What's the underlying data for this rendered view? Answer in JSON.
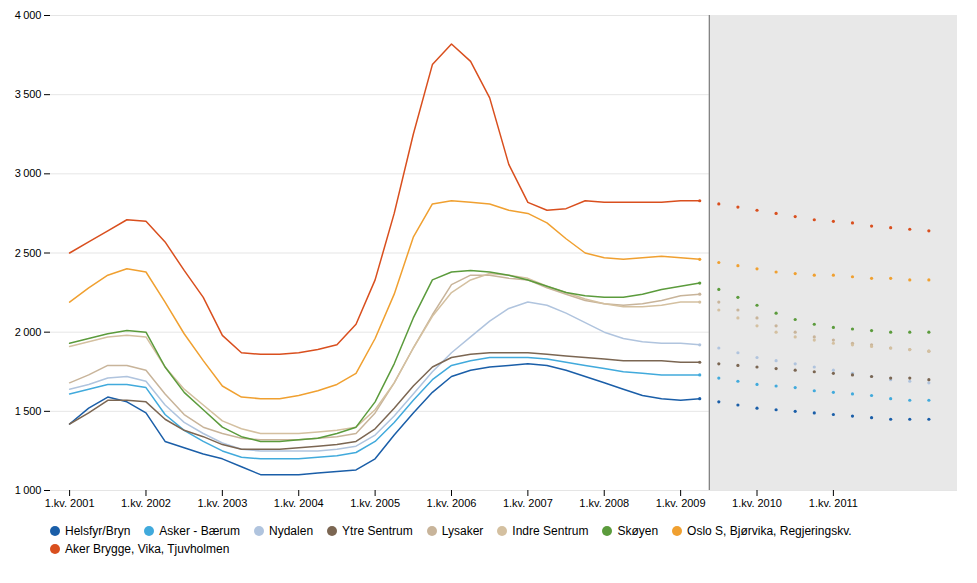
{
  "chart_data": {
    "type": "line",
    "categories": [
      "1.kv. 2001",
      null,
      null,
      null,
      "1.kv. 2002",
      null,
      null,
      null,
      "1.kv. 2003",
      null,
      null,
      null,
      "1.kv. 2004",
      null,
      null,
      null,
      "1.kv. 2005",
      null,
      null,
      null,
      "1.kv. 2006",
      null,
      null,
      null,
      "1.kv. 2007",
      null,
      null,
      null,
      "1.kv. 2008",
      null,
      null,
      null,
      "1.kv. 2009",
      null,
      null,
      null,
      "1.kv. 2010",
      null,
      null,
      null,
      "1.kv. 2011",
      null,
      null,
      null,
      null,
      null
    ],
    "series": [
      {
        "name": "Helsfyr/Bryn",
        "color": "#1a5ea8",
        "values": [
          1420,
          1520,
          1590,
          1560,
          1490,
          1310,
          1270,
          1230,
          1200,
          1150,
          1100,
          1100,
          1100,
          1110,
          1120,
          1130,
          1200,
          1350,
          1490,
          1620,
          1720,
          1760,
          1780,
          1790,
          1800,
          1790,
          1760,
          1720,
          1680,
          1640,
          1600,
          1580,
          1570,
          1580,
          null,
          null,
          null,
          null,
          null,
          null,
          null,
          null,
          null,
          null,
          null,
          null
        ],
        "forecast": [
          null,
          null,
          null,
          null,
          null,
          null,
          null,
          null,
          null,
          null,
          null,
          null,
          null,
          null,
          null,
          null,
          null,
          null,
          null,
          null,
          null,
          null,
          null,
          null,
          null,
          null,
          null,
          null,
          null,
          null,
          null,
          null,
          null,
          1580,
          1560,
          1540,
          1520,
          1510,
          1500,
          1490,
          1480,
          1470,
          1460,
          1450,
          1450,
          1450
        ]
      },
      {
        "name": "Asker - Bærum",
        "color": "#41aadc",
        "values": [
          1610,
          1640,
          1670,
          1670,
          1650,
          1480,
          1380,
          1310,
          1250,
          1210,
          1200,
          1200,
          1200,
          1210,
          1220,
          1240,
          1310,
          1430,
          1570,
          1700,
          1790,
          1820,
          1840,
          1840,
          1840,
          1830,
          1810,
          1790,
          1770,
          1750,
          1740,
          1730,
          1730,
          1730,
          null,
          null,
          null,
          null,
          null,
          null,
          null,
          null,
          null,
          null,
          null,
          null
        ],
        "forecast": [
          null,
          null,
          null,
          null,
          null,
          null,
          null,
          null,
          null,
          null,
          null,
          null,
          null,
          null,
          null,
          null,
          null,
          null,
          null,
          null,
          null,
          null,
          null,
          null,
          null,
          null,
          null,
          null,
          null,
          null,
          null,
          null,
          null,
          1730,
          1710,
          1690,
          1670,
          1660,
          1650,
          1630,
          1620,
          1610,
          1600,
          1580,
          1570,
          1570
        ]
      },
      {
        "name": "Nydalen",
        "color": "#b0c4de",
        "values": [
          1640,
          1670,
          1710,
          1720,
          1690,
          1540,
          1430,
          1360,
          1300,
          1260,
          1250,
          1250,
          1250,
          1250,
          1260,
          1280,
          1350,
          1470,
          1610,
          1750,
          1870,
          1970,
          2070,
          2150,
          2190,
          2170,
          2120,
          2060,
          2000,
          1960,
          1940,
          1930,
          1930,
          1920,
          null,
          null,
          null,
          null,
          null,
          null,
          null,
          null,
          null,
          null,
          null,
          null
        ],
        "forecast": [
          null,
          null,
          null,
          null,
          null,
          null,
          null,
          null,
          null,
          null,
          null,
          null,
          null,
          null,
          null,
          null,
          null,
          null,
          null,
          null,
          null,
          null,
          null,
          null,
          null,
          null,
          null,
          null,
          null,
          null,
          null,
          null,
          null,
          1920,
          1900,
          1870,
          1840,
          1820,
          1800,
          1780,
          1760,
          1740,
          1720,
          1700,
          1690,
          1680
        ]
      },
      {
        "name": "Ytre Sentrum",
        "color": "#7b6652",
        "values": [
          1420,
          1490,
          1570,
          1570,
          1560,
          1450,
          1380,
          1340,
          1290,
          1260,
          1260,
          1260,
          1270,
          1280,
          1290,
          1310,
          1390,
          1520,
          1660,
          1780,
          1840,
          1860,
          1870,
          1870,
          1870,
          1860,
          1850,
          1840,
          1830,
          1820,
          1820,
          1820,
          1810,
          1810,
          null,
          null,
          null,
          null,
          null,
          null,
          null,
          null,
          null,
          null,
          null,
          null
        ],
        "forecast": [
          null,
          null,
          null,
          null,
          null,
          null,
          null,
          null,
          null,
          null,
          null,
          null,
          null,
          null,
          null,
          null,
          null,
          null,
          null,
          null,
          null,
          null,
          null,
          null,
          null,
          null,
          null,
          null,
          null,
          null,
          null,
          null,
          null,
          1810,
          1800,
          1790,
          1780,
          1770,
          1760,
          1750,
          1740,
          1730,
          1720,
          1710,
          1710,
          1700
        ]
      },
      {
        "name": "Lysaker",
        "color": "#c8b49a",
        "values": [
          1680,
          1730,
          1790,
          1790,
          1760,
          1610,
          1480,
          1400,
          1360,
          1330,
          1320,
          1320,
          1320,
          1330,
          1340,
          1360,
          1490,
          1680,
          1900,
          2110,
          2300,
          2360,
          2360,
          2340,
          2330,
          2280,
          2240,
          2200,
          2180,
          2170,
          2180,
          2200,
          2230,
          2240,
          null,
          null,
          null,
          null,
          null,
          null,
          null,
          null,
          null,
          null,
          null,
          null
        ],
        "forecast": [
          null,
          null,
          null,
          null,
          null,
          null,
          null,
          null,
          null,
          null,
          null,
          null,
          null,
          null,
          null,
          null,
          null,
          null,
          null,
          null,
          null,
          null,
          null,
          null,
          null,
          null,
          null,
          null,
          null,
          null,
          null,
          null,
          null,
          2240,
          2190,
          2140,
          2090,
          2040,
          2000,
          1970,
          1950,
          1930,
          1920,
          1900,
          1890,
          1880
        ]
      },
      {
        "name": "Indre Sentrum",
        "color": "#d4c0a0",
        "values": [
          1910,
          1940,
          1970,
          1980,
          1970,
          1780,
          1640,
          1540,
          1440,
          1390,
          1360,
          1360,
          1360,
          1370,
          1380,
          1400,
          1510,
          1680,
          1900,
          2100,
          2250,
          2330,
          2370,
          2360,
          2340,
          2290,
          2250,
          2210,
          2180,
          2160,
          2160,
          2170,
          2190,
          2190,
          null,
          null,
          null,
          null,
          null,
          null,
          null,
          null,
          null,
          null,
          null,
          null
        ],
        "forecast": [
          null,
          null,
          null,
          null,
          null,
          null,
          null,
          null,
          null,
          null,
          null,
          null,
          null,
          null,
          null,
          null,
          null,
          null,
          null,
          null,
          null,
          null,
          null,
          null,
          null,
          null,
          null,
          null,
          null,
          null,
          null,
          null,
          null,
          2190,
          2140,
          2090,
          2040,
          2000,
          1970,
          1950,
          1930,
          1920,
          1910,
          1900,
          1890,
          1880
        ]
      },
      {
        "name": "Skøyen",
        "color": "#5b9b3c",
        "values": [
          1930,
          1960,
          1990,
          2010,
          2000,
          1780,
          1620,
          1510,
          1400,
          1340,
          1310,
          1310,
          1320,
          1330,
          1360,
          1400,
          1560,
          1800,
          2090,
          2330,
          2380,
          2390,
          2380,
          2360,
          2330,
          2290,
          2250,
          2230,
          2220,
          2220,
          2240,
          2270,
          2290,
          2310,
          null,
          null,
          null,
          null,
          null,
          null,
          null,
          null,
          null,
          null,
          null,
          null
        ],
        "forecast": [
          null,
          null,
          null,
          null,
          null,
          null,
          null,
          null,
          null,
          null,
          null,
          null,
          null,
          null,
          null,
          null,
          null,
          null,
          null,
          null,
          null,
          null,
          null,
          null,
          null,
          null,
          null,
          null,
          null,
          null,
          null,
          null,
          null,
          2310,
          2270,
          2220,
          2170,
          2120,
          2080,
          2050,
          2030,
          2020,
          2010,
          2000,
          2000,
          2000
        ]
      },
      {
        "name": "Oslo S, Bjørvika, Regjeringskv.",
        "color": "#f0a030",
        "values": [
          2190,
          2280,
          2360,
          2400,
          2380,
          2190,
          1990,
          1820,
          1660,
          1590,
          1580,
          1580,
          1600,
          1630,
          1670,
          1740,
          1960,
          2240,
          2600,
          2810,
          2830,
          2820,
          2810,
          2770,
          2750,
          2690,
          2590,
          2500,
          2470,
          2460,
          2470,
          2480,
          2470,
          2460,
          null,
          null,
          null,
          null,
          null,
          null,
          null,
          null,
          null,
          null,
          null,
          null
        ],
        "forecast": [
          null,
          null,
          null,
          null,
          null,
          null,
          null,
          null,
          null,
          null,
          null,
          null,
          null,
          null,
          null,
          null,
          null,
          null,
          null,
          null,
          null,
          null,
          null,
          null,
          null,
          null,
          null,
          null,
          null,
          null,
          null,
          null,
          null,
          2460,
          2440,
          2420,
          2400,
          2380,
          2370,
          2360,
          2360,
          2350,
          2340,
          2340,
          2330,
          2330
        ]
      },
      {
        "name": "Aker Brygge, Vika, Tjuvholmen",
        "color": "#d94f1e",
        "values": [
          2500,
          2570,
          2640,
          2710,
          2700,
          2570,
          2390,
          2220,
          1980,
          1870,
          1860,
          1860,
          1870,
          1890,
          1920,
          2050,
          2330,
          2750,
          3250,
          3690,
          3820,
          3710,
          3480,
          3060,
          2820,
          2770,
          2780,
          2830,
          2820,
          2820,
          2820,
          2820,
          2830,
          2830,
          null,
          null,
          null,
          null,
          null,
          null,
          null,
          null,
          null,
          null,
          null,
          null
        ],
        "forecast": [
          null,
          null,
          null,
          null,
          null,
          null,
          null,
          null,
          null,
          null,
          null,
          null,
          null,
          null,
          null,
          null,
          null,
          null,
          null,
          null,
          null,
          null,
          null,
          null,
          null,
          null,
          null,
          null,
          null,
          null,
          null,
          null,
          null,
          2830,
          2810,
          2790,
          2770,
          2750,
          2730,
          2710,
          2700,
          2690,
          2670,
          2660,
          2650,
          2640
        ]
      }
    ],
    "ylim": [
      1000,
      4000
    ],
    "yticks": [
      {
        "value": 1000,
        "label": "1 000"
      },
      {
        "value": 1500,
        "label": "1 500"
      },
      {
        "value": 2000,
        "label": "2 000"
      },
      {
        "value": 2500,
        "label": "2 500"
      },
      {
        "value": 3000,
        "label": "3 000"
      },
      {
        "value": 3500,
        "label": "3 500"
      },
      {
        "value": 4000,
        "label": "4 000"
      }
    ],
    "grid": true,
    "legend": "bottom"
  }
}
